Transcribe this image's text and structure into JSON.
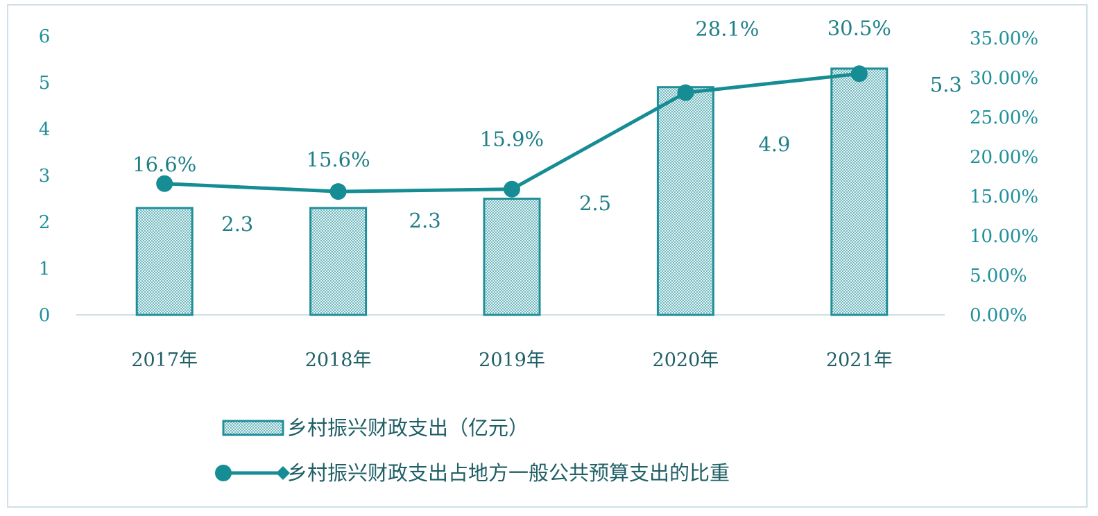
{
  "chart_data": {
    "type": "bar",
    "categories": [
      "2017年",
      "2018年",
      "2019年",
      "2020年",
      "2021年"
    ],
    "series": [
      {
        "name": "乡村振兴财政支出（亿元）",
        "type": "bar",
        "axis": "left",
        "values": [
          2.3,
          2.3,
          2.5,
          4.9,
          5.3
        ],
        "labels": [
          "2.3",
          "2.3",
          "2.5",
          "4.9",
          "5.3"
        ]
      },
      {
        "name": "乡村振兴财政支出占地方一般公共预算支出的比重",
        "type": "line",
        "axis": "right",
        "values": [
          16.6,
          15.6,
          15.9,
          28.1,
          30.5
        ],
        "labels": [
          "16.6%",
          "15.6%",
          "15.9%",
          "28.1%",
          "30.5%"
        ]
      }
    ],
    "y_left": {
      "ylim": [
        0,
        6
      ],
      "ticks": [
        "0",
        "1",
        "2",
        "3",
        "4",
        "5",
        "6"
      ]
    },
    "y_right": {
      "ylim": [
        0,
        35
      ],
      "ticks": [
        "0.00%",
        "5.00%",
        "10.00%",
        "15.00%",
        "20.00%",
        "25.00%",
        "30.00%",
        "35.00%"
      ]
    },
    "legend_position": "bottom",
    "colors": {
      "accent": "#1f8f9a",
      "line": "#168c94",
      "bar_fill": "#b9d8dc",
      "bar_stroke": "#1f8f9a"
    }
  }
}
